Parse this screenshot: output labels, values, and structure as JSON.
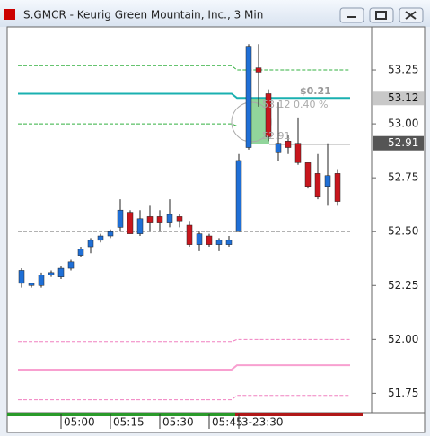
{
  "chart_data": {
    "type": "candlestick",
    "title": "S.GMCR - Keurig Green Mountain, Inc., 3 Min",
    "categories": [
      null,
      null,
      null,
      null,
      "05:00",
      null,
      null,
      null,
      null,
      "05:15",
      null,
      null,
      null,
      null,
      "05:30",
      null,
      null,
      null,
      null,
      "05:45",
      null,
      null,
      "3-23:30",
      null,
      null,
      null,
      null,
      null,
      null,
      null,
      null,
      null,
      null
    ],
    "open": [
      52.26,
      52.25,
      52.25,
      52.3,
      52.29,
      52.33,
      52.39,
      52.43,
      52.46,
      52.48,
      52.52,
      52.59,
      52.49,
      52.57,
      52.57,
      52.54,
      52.57,
      52.53,
      52.44,
      52.48,
      52.44,
      52.44,
      52.5,
      52.89,
      53.26,
      53.14,
      52.87,
      52.92,
      52.91,
      52.82,
      52.77,
      52.71,
      52.77
    ],
    "high": [
      52.33,
      52.26,
      52.31,
      52.32,
      52.34,
      52.37,
      52.43,
      52.47,
      52.49,
      52.51,
      52.65,
      52.6,
      52.6,
      52.62,
      52.6,
      52.65,
      52.58,
      52.55,
      52.5,
      52.49,
      52.47,
      52.48,
      52.86,
      53.37,
      53.37,
      53.16,
      53.1,
      52.95,
      53.03,
      52.82,
      52.86,
      52.91,
      52.79
    ],
    "low": [
      52.24,
      52.24,
      52.24,
      52.29,
      52.28,
      52.32,
      52.38,
      52.4,
      52.45,
      52.47,
      52.5,
      52.49,
      52.48,
      52.5,
      52.5,
      52.52,
      52.52,
      52.43,
      52.41,
      52.43,
      52.41,
      52.43,
      52.5,
      52.88,
      53.08,
      52.92,
      52.83,
      52.86,
      52.81,
      52.7,
      52.65,
      52.62,
      52.62
    ],
    "close": [
      52.32,
      52.26,
      52.3,
      52.31,
      52.33,
      52.36,
      52.42,
      52.46,
      52.48,
      52.5,
      52.6,
      52.49,
      52.56,
      52.54,
      52.54,
      52.58,
      52.55,
      52.44,
      52.49,
      52.44,
      52.46,
      52.46,
      52.83,
      53.36,
      53.24,
      52.94,
      52.91,
      52.89,
      52.82,
      52.71,
      52.66,
      52.76,
      52.64
    ],
    "up_color": "#1f6fd6",
    "down_color": "#c8161d",
    "ylim": [
      51.66,
      53.45
    ],
    "yticks": [
      51.75,
      {
        "value": 52,
        "label": "52.00"
      },
      52.25,
      {
        "value": 52.5,
        "label": "52.50"
      },
      52.75,
      {
        "value": 53,
        "label": "53.00"
      },
      53.25
    ],
    "levels": [
      {
        "color": "#33b040",
        "dashed": true,
        "values": [
          53.27,
          53.25
        ]
      },
      {
        "color": "#1ab0b0",
        "dashed": false,
        "values": [
          53.14,
          53.12
        ]
      },
      {
        "color": "#33b040",
        "dashed": true,
        "values": [
          53.0,
          52.99
        ]
      },
      {
        "color": "#999999",
        "dashed": true,
        "values": [
          52.5,
          52.5
        ]
      },
      {
        "color": "#f080c0",
        "dashed": true,
        "values": [
          51.99,
          52.0
        ]
      },
      {
        "color": "#f8a0d0",
        "dashed": false,
        "values": [
          51.86,
          51.88
        ]
      },
      {
        "color": "#f080c0",
        "dashed": true,
        "values": [
          51.72,
          51.74
        ]
      }
    ],
    "price_labels": [
      {
        "value": 53.12,
        "color": "#c8c8c8"
      },
      {
        "value": 52.91,
        "color": "#555555"
      }
    ],
    "annotations": [
      "$0.21",
      "53.12 0.40 %",
      "52.91"
    ]
  }
}
